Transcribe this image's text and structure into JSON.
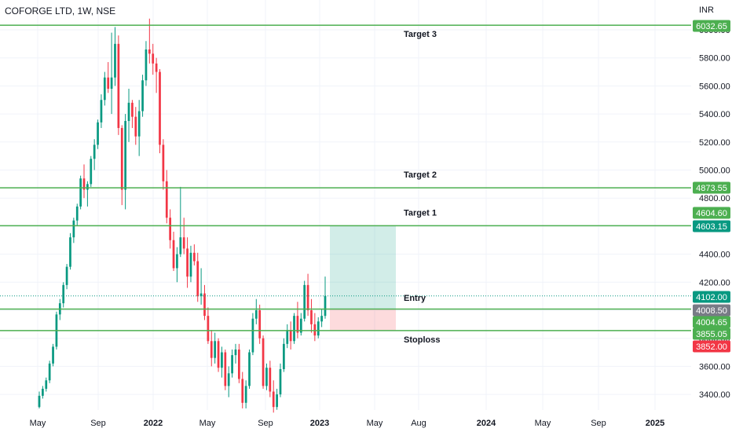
{
  "header": {
    "title": "COFORGE LTD, 1W, NSE",
    "currency": "INR"
  },
  "chart_data": {
    "type": "candlestick",
    "y_range": [
      3270,
      6120
    ],
    "y_ticks": [
      "3400.00",
      "3600.00",
      "3800.00",
      "4000.00",
      "4200.00",
      "4400.00",
      "4600.00",
      "4800.00",
      "5000.00",
      "5200.00",
      "5400.00",
      "5600.00",
      "5800.00",
      "6000.00"
    ],
    "x_labels": [
      "May",
      "Sep",
      "2022",
      "May",
      "Sep",
      "2023",
      "May",
      "Aug",
      "2024",
      "May",
      "Sep",
      "2025"
    ],
    "x_label_bold": [
      "2022",
      "2023",
      "2024",
      "2025"
    ],
    "grid": true,
    "candles": [
      [
        3310,
        3420,
        3300,
        3390
      ],
      [
        3390,
        3460,
        3370,
        3440
      ],
      [
        3440,
        3520,
        3420,
        3500
      ],
      [
        3500,
        3640,
        3480,
        3620
      ],
      [
        3620,
        3760,
        3600,
        3740
      ],
      [
        3740,
        3990,
        3720,
        3970
      ],
      [
        3970,
        4080,
        3930,
        4050
      ],
      [
        4050,
        4200,
        4020,
        4180
      ],
      [
        4180,
        4330,
        4150,
        4310
      ],
      [
        4310,
        4550,
        4290,
        4520
      ],
      [
        4520,
        4660,
        4480,
        4640
      ],
      [
        4640,
        4760,
        4600,
        4740
      ],
      [
        4740,
        4960,
        4720,
        4940
      ],
      [
        4940,
        5040,
        4800,
        4860
      ],
      [
        4860,
        4920,
        4740,
        4900
      ],
      [
        4900,
        5100,
        4880,
        5080
      ],
      [
        5080,
        5220,
        5000,
        5180
      ],
      [
        5180,
        5360,
        5150,
        5340
      ],
      [
        5340,
        5540,
        5300,
        5500
      ],
      [
        5500,
        5700,
        5460,
        5660
      ],
      [
        5660,
        5770,
        5550,
        5580
      ],
      [
        5580,
        5980,
        5400,
        5660
      ],
      [
        5660,
        6020,
        5600,
        5900
      ],
      [
        5900,
        5960,
        5250,
        5300
      ],
      [
        5300,
        5320,
        4750,
        4860
      ],
      [
        4860,
        5400,
        4720,
        5350
      ],
      [
        5350,
        5580,
        5200,
        5480
      ],
      [
        5480,
        5500,
        5300,
        5380
      ],
      [
        5380,
        5450,
        5180,
        5240
      ],
      [
        5240,
        5500,
        5100,
        5420
      ],
      [
        5420,
        5680,
        5380,
        5640
      ],
      [
        5640,
        5920,
        5600,
        5860
      ],
      [
        5860,
        6080,
        5760,
        5830
      ],
      [
        5830,
        5900,
        5680,
        5760
      ],
      [
        5760,
        5800,
        5550,
        5700
      ],
      [
        5700,
        5720,
        5120,
        5180
      ],
      [
        5180,
        5220,
        4860,
        4920
      ],
      [
        4920,
        5000,
        4620,
        4660
      ],
      [
        4660,
        4720,
        4440,
        4500
      ],
      [
        4500,
        4560,
        4280,
        4300
      ],
      [
        4300,
        4450,
        4200,
        4400
      ],
      [
        4400,
        4880,
        4380,
        4520
      ],
      [
        4520,
        4660,
        4400,
        4440
      ],
      [
        4440,
        4520,
        4160,
        4240
      ],
      [
        4240,
        4460,
        4200,
        4410
      ],
      [
        4410,
        4470,
        4320,
        4350
      ],
      [
        4350,
        4410,
        4060,
        4100
      ],
      [
        4100,
        4300,
        4040,
        4120
      ],
      [
        4120,
        4180,
        3930,
        3960
      ],
      [
        3960,
        4020,
        3760,
        3780
      ],
      [
        3780,
        3860,
        3600,
        3660
      ],
      [
        3660,
        3840,
        3620,
        3780
      ],
      [
        3780,
        3800,
        3560,
        3590
      ],
      [
        3590,
        3740,
        3520,
        3700
      ],
      [
        3700,
        3720,
        3430,
        3460
      ],
      [
        3460,
        3600,
        3380,
        3550
      ],
      [
        3550,
        3720,
        3520,
        3680
      ],
      [
        3680,
        3760,
        3620,
        3720
      ],
      [
        3720,
        3760,
        3480,
        3510
      ],
      [
        3510,
        3560,
        3300,
        3340
      ],
      [
        3340,
        3500,
        3300,
        3460
      ],
      [
        3460,
        3720,
        3440,
        3700
      ],
      [
        3700,
        3980,
        3680,
        3940
      ],
      [
        3940,
        4080,
        3900,
        4000
      ],
      [
        4000,
        4040,
        3760,
        3800
      ],
      [
        3800,
        3820,
        3440,
        3460
      ],
      [
        3460,
        3620,
        3430,
        3590
      ],
      [
        3590,
        3640,
        3380,
        3420
      ],
      [
        3420,
        3500,
        3270,
        3310
      ],
      [
        3310,
        3440,
        3290,
        3400
      ],
      [
        3400,
        3620,
        3380,
        3580
      ],
      [
        3580,
        3800,
        3560,
        3760
      ],
      [
        3760,
        3900,
        3730,
        3860
      ],
      [
        3860,
        3920,
        3720,
        3780
      ],
      [
        3780,
        3980,
        3760,
        3960
      ],
      [
        3960,
        4060,
        3800,
        3840
      ],
      [
        3840,
        3980,
        3820,
        3940
      ],
      [
        3940,
        4210,
        3920,
        4180
      ],
      [
        4180,
        4260,
        3960,
        4000
      ],
      [
        4000,
        4080,
        3840,
        3900
      ],
      [
        3900,
        3980,
        3780,
        3820
      ],
      [
        3820,
        3950,
        3800,
        3920
      ],
      [
        3920,
        4010,
        3880,
        3960
      ],
      [
        3960,
        4240,
        3940,
        4102
      ]
    ],
    "levels": [
      {
        "name": "Target 3",
        "value": "6032.65",
        "color": "#4CAF50"
      },
      {
        "name": "Target 2",
        "value": "4873.55",
        "color": "#4CAF50"
      },
      {
        "name": "Target 1",
        "value": "4603.15",
        "color": "#4CAF50"
      },
      {
        "name": "",
        "value": "4008.50",
        "color": "#4CAF50"
      },
      {
        "name": "Stoploss",
        "value": "3855.05",
        "color": "#4CAF50"
      }
    ],
    "entry": {
      "name": "Entry",
      "value": "4102.00"
    },
    "price_tags": [
      {
        "value": "6032.65",
        "color": "#4CAF50"
      },
      {
        "value": "4873.55",
        "color": "#4CAF50"
      },
      {
        "value": "4604.60",
        "color": "#4CAF50"
      },
      {
        "value": "4603.15",
        "color": "#089981"
      },
      {
        "value": "4102.00",
        "color": "#089981"
      },
      {
        "value": "4008.50",
        "color": "#787B86"
      },
      {
        "value": "4004.65",
        "color": "#4CAF50"
      },
      {
        "value": "3855.05",
        "color": "#4CAF50"
      },
      {
        "value": "3852.00",
        "color": "#F23645"
      }
    ],
    "position": {
      "entry": 4008.5,
      "target": 4604.6,
      "stop": 3852.0
    },
    "colors": {
      "up": "#089981",
      "down": "#F23645",
      "grid": "#F0F3FA",
      "level": "#4CAF50"
    }
  }
}
